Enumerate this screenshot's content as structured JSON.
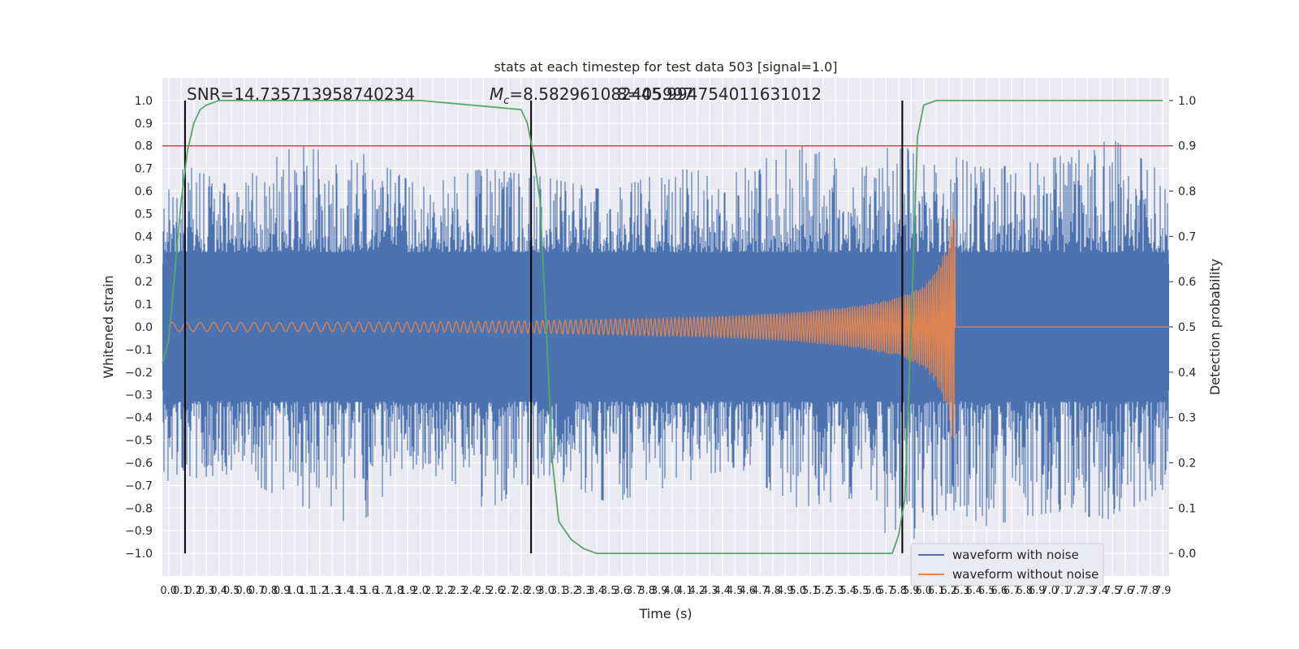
{
  "chart_data": {
    "type": "line",
    "title": "stats at each timestep for test data 503 [signal=1.0]",
    "xlabel": "Time (s)",
    "ylabel": "Whitened strain",
    "y2label": "Detection probability",
    "xlim": [
      -0.05,
      7.95
    ],
    "ylim": [
      -1.1,
      1.1
    ],
    "y2lim": [
      -0.05,
      1.05
    ],
    "grid": true,
    "legend_position": "lower-right",
    "annotations": {
      "snr": "SNR=14.735713958740234",
      "chirp_mass": "=8.582961082405997",
      "chirp_mass_symbol": "M",
      "chirp_mass_subscript": "c",
      "overlap": "8=45.994754011631012"
    },
    "threshold_line": {
      "y": 0.8,
      "color": "#c44e52"
    },
    "detection_markers_x": [
      0.13,
      2.88,
      5.83
    ],
    "colors": {
      "noisy": "#4c72b0",
      "clean": "#dd8452",
      "probability": "#55a868",
      "markers": "#000000",
      "background": "#eaeaf2"
    },
    "series": [
      {
        "name": "waveform with noise",
        "envelope_x": [
          0.0,
          0.5,
          1.0,
          1.5,
          2.0,
          2.5,
          3.0,
          3.5,
          4.0,
          4.5,
          5.0,
          5.5,
          5.8,
          6.0,
          6.2,
          6.5,
          7.0,
          7.5,
          7.9
        ],
        "peak_max": [
          0.75,
          0.62,
          0.8,
          0.78,
          0.62,
          0.7,
          0.66,
          0.6,
          0.7,
          0.68,
          0.81,
          0.7,
          0.83,
          0.72,
          0.76,
          0.7,
          0.74,
          0.83,
          0.68
        ],
        "peak_min": [
          -0.68,
          -0.65,
          -0.78,
          -0.88,
          -0.62,
          -0.82,
          -0.65,
          -0.78,
          -0.7,
          -0.62,
          -0.8,
          -0.75,
          -1.0,
          -0.9,
          -0.8,
          -0.88,
          -0.82,
          -0.85,
          -0.72
        ],
        "legend_label": "waveform with noise"
      },
      {
        "name": "waveform without noise",
        "envelope_x": [
          0.0,
          1.0,
          2.0,
          3.0,
          4.0,
          4.5,
          5.0,
          5.5,
          5.8,
          6.0,
          6.1,
          6.2,
          6.23
        ],
        "amplitude": [
          0.02,
          0.02,
          0.022,
          0.028,
          0.04,
          0.05,
          0.065,
          0.095,
          0.13,
          0.18,
          0.25,
          0.38,
          0.52
        ],
        "merger_x": 6.25,
        "legend_label": "waveform without noise"
      },
      {
        "name": "detection probability",
        "axis": "right",
        "x": [
          -0.05,
          0.0,
          0.1,
          0.15,
          0.2,
          0.25,
          0.3,
          0.35,
          0.4,
          0.5,
          0.6,
          1.0,
          2.0,
          2.8,
          2.85,
          2.9,
          2.95,
          3.0,
          3.05,
          3.1,
          3.2,
          3.3,
          3.4,
          3.6,
          4.0,
          5.0,
          5.75,
          5.8,
          5.85,
          5.9,
          5.95,
          6.0,
          6.1,
          7.0,
          7.9
        ],
        "values": [
          0.42,
          0.47,
          0.78,
          0.89,
          0.95,
          0.98,
          0.99,
          0.995,
          1.0,
          1.0,
          1.0,
          1.0,
          1.0,
          0.98,
          0.95,
          0.88,
          0.78,
          0.5,
          0.2,
          0.07,
          0.03,
          0.01,
          0.0,
          0.0,
          0.0,
          0.0,
          0.0,
          0.04,
          0.12,
          0.5,
          0.92,
          0.99,
          1.0,
          1.0,
          1.0
        ]
      }
    ],
    "legend": [
      "waveform with noise",
      "waveform without noise"
    ],
    "xticks_step": 0.1,
    "yticks": [
      -1.0,
      -0.9,
      -0.8,
      -0.7,
      -0.6,
      -0.5,
      -0.4,
      -0.3,
      -0.2,
      -0.1,
      0.0,
      0.1,
      0.2,
      0.3,
      0.4,
      0.5,
      0.6,
      0.7,
      0.8,
      0.9,
      1.0
    ],
    "y2ticks": [
      0.0,
      0.1,
      0.2,
      0.3,
      0.4,
      0.5,
      0.6,
      0.7,
      0.8,
      0.9,
      1.0
    ]
  }
}
